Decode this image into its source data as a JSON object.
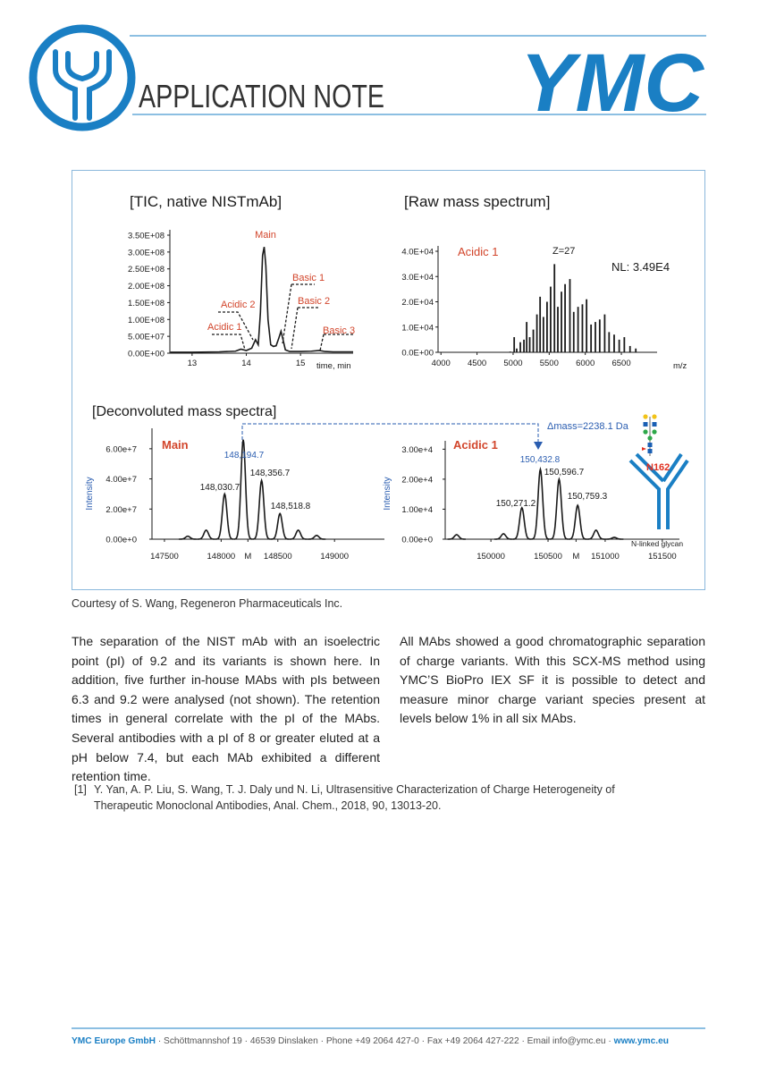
{
  "header": {
    "title": "APPLICATION NOTE",
    "logo": "YMC"
  },
  "figure": {
    "deconvolution_title": "[Deconvoluted mass spectra]",
    "mass_shift": "Δmass=2238.1 Da",
    "glycan_site": "N162",
    "glycan_caption": "N-linked glycan"
  },
  "chart_data": [
    {
      "type": "line",
      "title": "[TIC, native NISTmAb]",
      "x": [
        12.6,
        13.0,
        13.5,
        13.8,
        13.9,
        14.0,
        14.1,
        14.17,
        14.22,
        14.26,
        14.3,
        14.33,
        14.36,
        14.4,
        14.45,
        14.5,
        14.55,
        14.6,
        14.64,
        14.67,
        14.72,
        14.8,
        15.0,
        15.2,
        15.35,
        15.45,
        15.6,
        15.97
      ],
      "values": [
        3000000,
        3000000,
        4000000,
        6000000,
        12000000,
        8000000,
        15000000,
        40000000,
        25000000,
        120000000,
        290000000,
        315000000,
        260000000,
        100000000,
        25000000,
        20000000,
        22000000,
        45000000,
        65000000,
        45000000,
        10000000,
        5000000,
        5000000,
        6000000,
        8000000,
        5000000,
        4000000,
        4000000
      ],
      "color": "#1a1a1a",
      "xlim": [
        12.59,
        15.97
      ],
      "ylim": [
        0,
        350000000
      ],
      "xticks": [
        13,
        14,
        15
      ],
      "yticks": [
        {
          "value": 0,
          "label": "0.00E+00"
        },
        {
          "value": 50000000,
          "label": "5.00E+07"
        },
        {
          "value": 100000000,
          "label": "1.00E+08"
        },
        {
          "value": 150000000,
          "label": "1.50E+08"
        },
        {
          "value": 200000000,
          "label": "2.00E+08"
        },
        {
          "value": 250000000,
          "label": "2.50E+08"
        },
        {
          "value": 300000000,
          "label": "3.00E+08"
        },
        {
          "value": 350000000,
          "label": "3.50E+08"
        }
      ],
      "xlabel": "time, min",
      "annotations": [
        "Main",
        "Acidic 2",
        "Acidic 1",
        "Basic 1",
        "Basic 2",
        "Basic 3"
      ],
      "annotation_colors": [
        "#d2452b",
        "#d2452b",
        "#d2452b",
        "#d2452b",
        "#d2452b",
        "#d2452b"
      ]
    },
    {
      "type": "stem",
      "title": "[Raw mass spectrum]",
      "x": [
        4960,
        5015,
        5050,
        5100,
        5150,
        5188,
        5230,
        5280,
        5330,
        5374,
        5420,
        5470,
        5520,
        5573,
        5620,
        5670,
        5720,
        5787,
        5840,
        5900,
        5960,
        6018,
        6080,
        6140,
        6200,
        6269,
        6330,
        6400,
        6470,
        6541,
        6620,
        6700
      ],
      "values": [
        300,
        6000,
        1500,
        4000,
        5000,
        12000,
        6000,
        9000,
        15000,
        22000,
        14000,
        20000,
        26000,
        34900,
        18000,
        24000,
        27000,
        29000,
        16000,
        18000,
        19000,
        21000,
        11000,
        12000,
        13000,
        15000,
        8000,
        7000,
        5000,
        6000,
        2500,
        1500
      ],
      "color": "#1a1a1a",
      "xlim": [
        3960,
        6995
      ],
      "ylim": [
        0,
        40000
      ],
      "xticks": [
        4000,
        4500,
        5000,
        5500,
        6000,
        6500
      ],
      "yticks": [
        {
          "value": 0,
          "label": "0.0E+00"
        },
        {
          "value": 10000,
          "label": "1.0E+04"
        },
        {
          "value": 20000,
          "label": "2.0E+04"
        },
        {
          "value": 30000,
          "label": "3.0E+04"
        },
        {
          "value": 40000,
          "label": "4.0E+04"
        }
      ],
      "xlabel": "m/z",
      "annotations": [
        "Acidic 1",
        "Z=27",
        "NL: 3.49E4"
      ],
      "annotation_colors": [
        "#d2452b",
        "#1a1a1a",
        "#1a1a1a"
      ]
    },
    {
      "type": "peaks",
      "title": "Main",
      "title_color": "#d2452b",
      "ylabel": "Intensity",
      "ylabel_color": "#2a5db0",
      "x": [
        147706,
        147868,
        148030.7,
        148194.7,
        148356.7,
        148518.8,
        148680,
        148842
      ],
      "values": [
        2000000,
        6000000,
        30000000,
        66000000,
        39000000,
        17000000,
        6000000,
        2500000
      ],
      "x_labels": [
        null,
        null,
        "148,030.7",
        "148,194.7",
        "148,356.7",
        "148,518.8",
        null,
        null
      ],
      "color": "#1a1a1a",
      "label_color": "#1a1a1a",
      "highlight": 3,
      "highlight_color": "#2a5db0",
      "xlim": [
        147390,
        149440
      ],
      "ylim": [
        0,
        70000000
      ],
      "xticks": [
        147500,
        148000,
        {
          "value": 148236,
          "label": "M"
        },
        148500,
        149000
      ],
      "yticks": [
        {
          "value": 0,
          "label": "0.00e+0"
        },
        {
          "value": 20000000,
          "label": "2.00e+7"
        },
        {
          "value": 40000000,
          "label": "4.00e+7"
        },
        {
          "value": 60000000,
          "label": "6.00e+7"
        }
      ]
    },
    {
      "type": "peaks",
      "title": "Acidic 1",
      "title_color": "#d2452b",
      "ylabel": "Intensity",
      "ylabel_color": "#2a5db0",
      "x": [
        149700,
        150110,
        150271.2,
        150432.8,
        150596.7,
        150759.3,
        150920,
        151080
      ],
      "values": [
        1500,
        1800,
        10500,
        23300,
        20000,
        11300,
        3000,
        600
      ],
      "x_labels": [
        null,
        null,
        "150,271.2",
        "150,432.8",
        "150,596.7",
        "150,759.3",
        null,
        null
      ],
      "color": "#1a1a1a",
      "label_color": "#1a1a1a",
      "highlight": 3,
      "highlight_color": "#2a5db0",
      "xlim": [
        149600,
        151650
      ],
      "ylim": [
        0,
        31000
      ],
      "xticks": [
        150000,
        150500,
        {
          "value": 150745,
          "label": "M"
        },
        151000,
        151500
      ],
      "yticks": [
        {
          "value": 0,
          "label": "0.00e+0"
        },
        {
          "value": 10000,
          "label": "1.00e+4"
        },
        {
          "value": 20000,
          "label": "2.00e+4"
        },
        {
          "value": 30000,
          "label": "3.00e+4"
        }
      ]
    }
  ],
  "caption": "Courtesy of S. Wang, Regeneron Pharmaceuticals Inc.",
  "body": {
    "left": "The separation of the NIST mAb with an isoelectric point (pI) of 9.2 and its variants is shown here. In addition, five further in-house MAbs with pIs between 6.3 and 9.2 were analysed (not shown). The retention times in general correlate with the pI of the MAbs. Several antibodies with a pI of 8 or greater eluted at a pH below 7.4, but each MAb exhibited a different retention time.",
    "right": "All MAbs showed a good chromatographic separation of charge variants. With this SCX-MS method using YMC’S BioPro IEX SF it is possible to detect and measure minor charge variant species present at levels below 1% in all six MAbs."
  },
  "reference": {
    "number": "[1]",
    "text": "Y. Yan, A. P. Liu, S. Wang, T. J. Daly und N. Li, Ultrasensitive Characterization of Charge Heterogeneity of Therapeutic Monoclonal Antibodies, Anal. Chem., 2018, 90, 13013-20."
  },
  "footer": {
    "company": "YMC Europe GmbH",
    "address": "· Schöttmannshof 19 · 46539 Dinslaken · Phone +49 2064 427-0 · Fax +49 2064 427-222 · Email info@ymc.eu ·",
    "website": "www.ymc.eu"
  }
}
